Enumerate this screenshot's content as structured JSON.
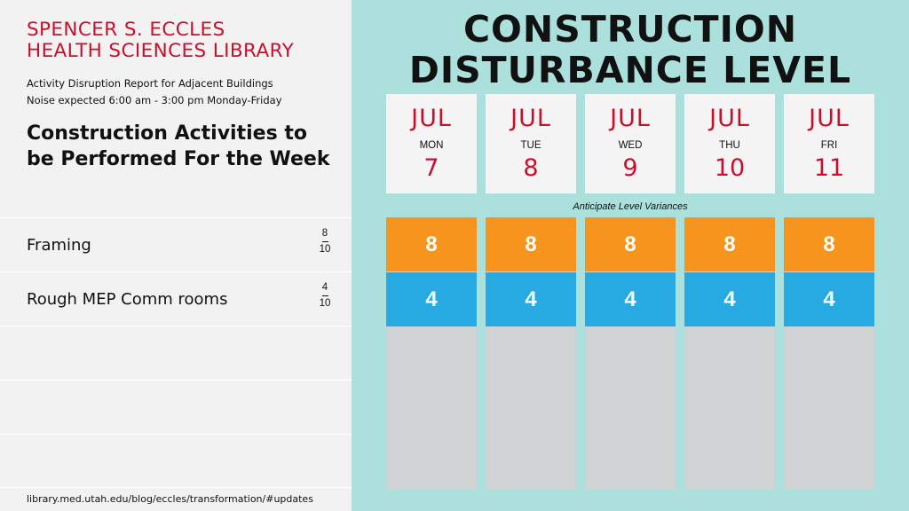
{
  "library": {
    "line1": "SPENCER S. ECCLES",
    "line2": "HEALTH SCIENCES LIBRARY"
  },
  "report": {
    "subtitle": "Activity Disruption Report for Adjacent Buildings",
    "noise": "Noise expected 6:00 am - 3:00 pm Monday-Friday"
  },
  "week_heading": "Construction Activities to be Performed For the Week",
  "activities": [
    {
      "name": "Framing",
      "level": "8",
      "max": "10"
    },
    {
      "name": "Rough MEP Comm rooms",
      "level": "4",
      "max": "10"
    }
  ],
  "url": "library.med.utah.edu/blog/eccles/transformation/#updates",
  "main_title": {
    "line1": "CONSTRUCTION",
    "line2": "DISTURBANCE LEVEL"
  },
  "days": [
    {
      "month": "JUL",
      "weekday": "MON",
      "day": "7"
    },
    {
      "month": "JUL",
      "weekday": "TUE",
      "day": "8"
    },
    {
      "month": "JUL",
      "weekday": "WED",
      "day": "9"
    },
    {
      "month": "JUL",
      "weekday": "THU",
      "day": "10"
    },
    {
      "month": "JUL",
      "weekday": "FRI",
      "day": "11"
    }
  ],
  "variance_note": "Anticipate Level Variances",
  "levels": [
    {
      "high": "8",
      "low": "4"
    },
    {
      "high": "8",
      "low": "4"
    },
    {
      "high": "8",
      "low": "4"
    },
    {
      "high": "8",
      "low": "4"
    },
    {
      "high": "8",
      "low": "4"
    }
  ],
  "colors": {
    "brand_red": "#c8102e",
    "teal_bg": "#abe0dc",
    "orange": "#f7941d",
    "blue": "#27a9e1",
    "empty_gray": "#d1d2d4"
  }
}
